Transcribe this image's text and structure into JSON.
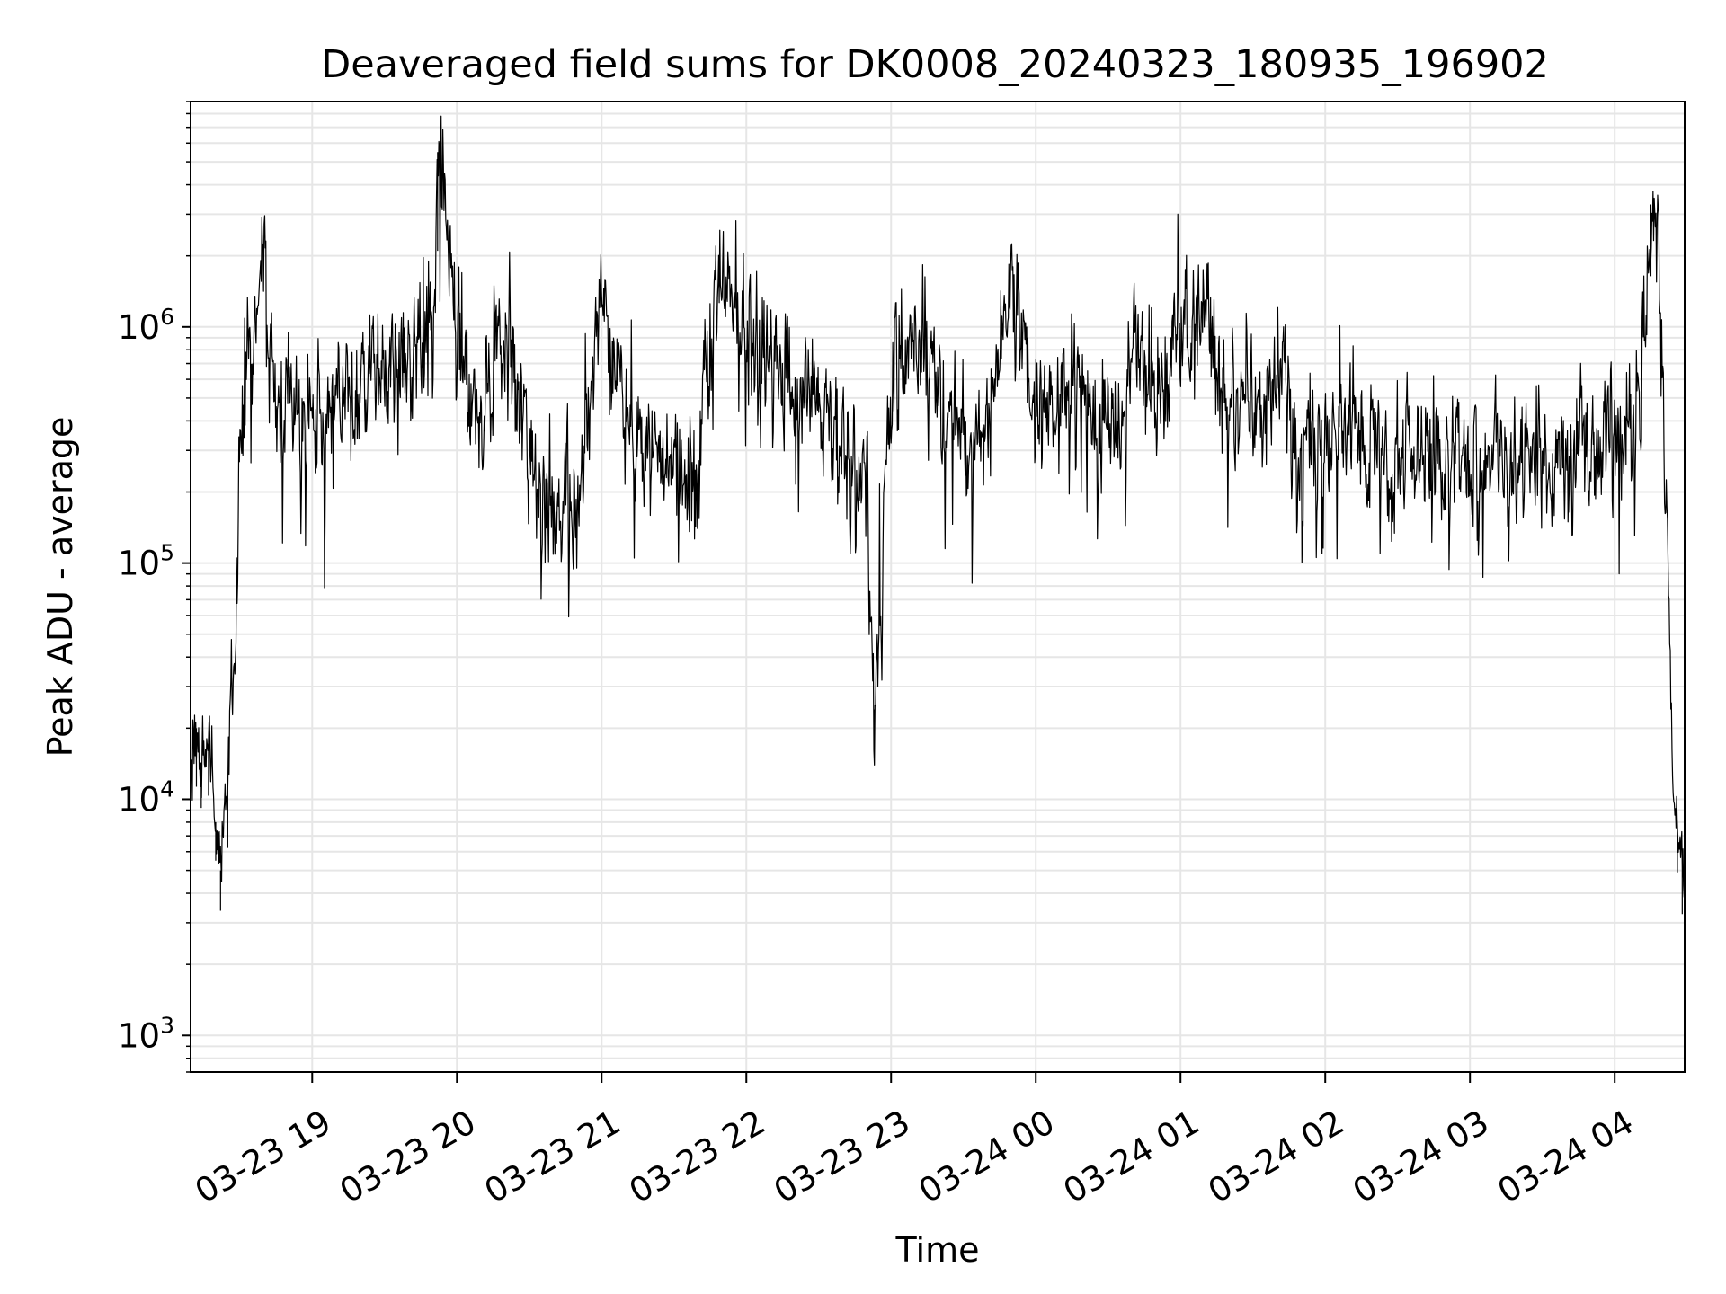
{
  "chart_data": {
    "type": "line",
    "title": "Deaveraged field sums for DK0008_20240323_180935_196902",
    "xlabel": "Time",
    "ylabel": "Peak ADU - average",
    "yscale": "log",
    "ylim": [
      700,
      9000000
    ],
    "xlim": [
      "2024-03-23 18:09:35",
      "2024-03-24 04:29:00"
    ],
    "grid": true,
    "line_color": "#000000",
    "grid_color": "#e6e6e6",
    "x_ticks": [
      {
        "label": "03-23 19",
        "value": "2024-03-23 19:00"
      },
      {
        "label": "03-23 20",
        "value": "2024-03-23 20:00"
      },
      {
        "label": "03-23 21",
        "value": "2024-03-23 21:00"
      },
      {
        "label": "03-23 22",
        "value": "2024-03-23 22:00"
      },
      {
        "label": "03-23 23",
        "value": "2024-03-23 23:00"
      },
      {
        "label": "03-24 00",
        "value": "2024-03-24 00:00"
      },
      {
        "label": "03-24 01",
        "value": "2024-03-24 01:00"
      },
      {
        "label": "03-24 02",
        "value": "2024-03-24 02:00"
      },
      {
        "label": "03-24 03",
        "value": "2024-03-24 03:00"
      },
      {
        "label": "03-24 04",
        "value": "2024-03-24 04:00"
      }
    ],
    "y_ticks": [
      {
        "base": "10",
        "exp": "3",
        "value": 1000
      },
      {
        "base": "10",
        "exp": "4",
        "value": 10000
      },
      {
        "base": "10",
        "exp": "5",
        "value": 100000
      },
      {
        "base": "10",
        "exp": "6",
        "value": 1000000
      }
    ],
    "series": [
      {
        "x": [
          "2024-03-23 18:09:35",
          "2024-03-23 18:12",
          "2024-03-23 18:14",
          "2024-03-23 18:17",
          "2024-03-23 18:20",
          "2024-03-23 18:22",
          "2024-03-23 18:25",
          "2024-03-23 18:28",
          "2024-03-23 18:30",
          "2024-03-23 18:32",
          "2024-03-23 18:35",
          "2024-03-23 18:38",
          "2024-03-23 18:40",
          "2024-03-23 18:43",
          "2024-03-23 18:46",
          "2024-03-23 18:50",
          "2024-03-23 18:55",
          "2024-03-23 19:00",
          "2024-03-23 19:05",
          "2024-03-23 19:10",
          "2024-03-23 19:20",
          "2024-03-23 19:30",
          "2024-03-23 19:40",
          "2024-03-23 19:50",
          "2024-03-23 19:52",
          "2024-03-23 20:00",
          "2024-03-23 20:10",
          "2024-03-23 20:20",
          "2024-03-23 20:30",
          "2024-03-23 20:40",
          "2024-03-23 20:50",
          "2024-03-23 21:00",
          "2024-03-23 21:02",
          "2024-03-23 21:10",
          "2024-03-23 21:20",
          "2024-03-23 21:30",
          "2024-03-23 21:40",
          "2024-03-23 21:43",
          "2024-03-23 21:50",
          "2024-03-23 22:00",
          "2024-03-23 22:10",
          "2024-03-23 22:20",
          "2024-03-23 22:30",
          "2024-03-23 22:40",
          "2024-03-23 22:50",
          "2024-03-23 22:53",
          "2024-03-23 23:00",
          "2024-03-23 23:10",
          "2024-03-23 23:20",
          "2024-03-23 23:30",
          "2024-03-23 23:40",
          "2024-03-23 23:50",
          "2024-03-24 00:00",
          "2024-03-24 00:10",
          "2024-03-24 00:20",
          "2024-03-24 00:30",
          "2024-03-24 00:40",
          "2024-03-24 00:50",
          "2024-03-24 01:00",
          "2024-03-24 01:10",
          "2024-03-24 01:20",
          "2024-03-24 01:30",
          "2024-03-24 01:40",
          "2024-03-24 01:50",
          "2024-03-24 02:00",
          "2024-03-24 02:10",
          "2024-03-24 02:20",
          "2024-03-24 02:30",
          "2024-03-24 02:40",
          "2024-03-24 02:50",
          "2024-03-24 03:00",
          "2024-03-24 03:10",
          "2024-03-24 03:20",
          "2024-03-24 03:30",
          "2024-03-24 03:40",
          "2024-03-24 03:50",
          "2024-03-24 04:00",
          "2024-03-24 04:10",
          "2024-03-24 04:15",
          "2024-03-24 04:18",
          "2024-03-24 04:20",
          "2024-03-24 04:22",
          "2024-03-24 04:24",
          "2024-03-24 04:26",
          "2024-03-24 04:28"
        ],
        "y": [
          15000,
          20000,
          14000,
          18000,
          8000,
          5000,
          12000,
          40000,
          300000,
          700000,
          1000000,
          1500000,
          2200000,
          800000,
          400000,
          500000,
          300000,
          350000,
          400000,
          500000,
          600000,
          700000,
          800000,
          900000,
          5500000,
          700000,
          400000,
          1000000,
          250000,
          150000,
          200000,
          1500000,
          900000,
          400000,
          300000,
          250000,
          200000,
          600000,
          1500000,
          1000000,
          700000,
          500000,
          600000,
          300000,
          200000,
          24000,
          600000,
          900000,
          500000,
          300000,
          400000,
          1500000,
          400000,
          500000,
          600000,
          300000,
          700000,
          500000,
          900000,
          1200000,
          500000,
          400000,
          600000,
          300000,
          350000,
          400000,
          300000,
          250000,
          300000,
          280000,
          250000,
          300000,
          280000,
          300000,
          250000,
          300000,
          350000,
          500000,
          3300000,
          2000000,
          400000,
          100000,
          13000,
          7000,
          5000
        ]
      }
    ]
  }
}
